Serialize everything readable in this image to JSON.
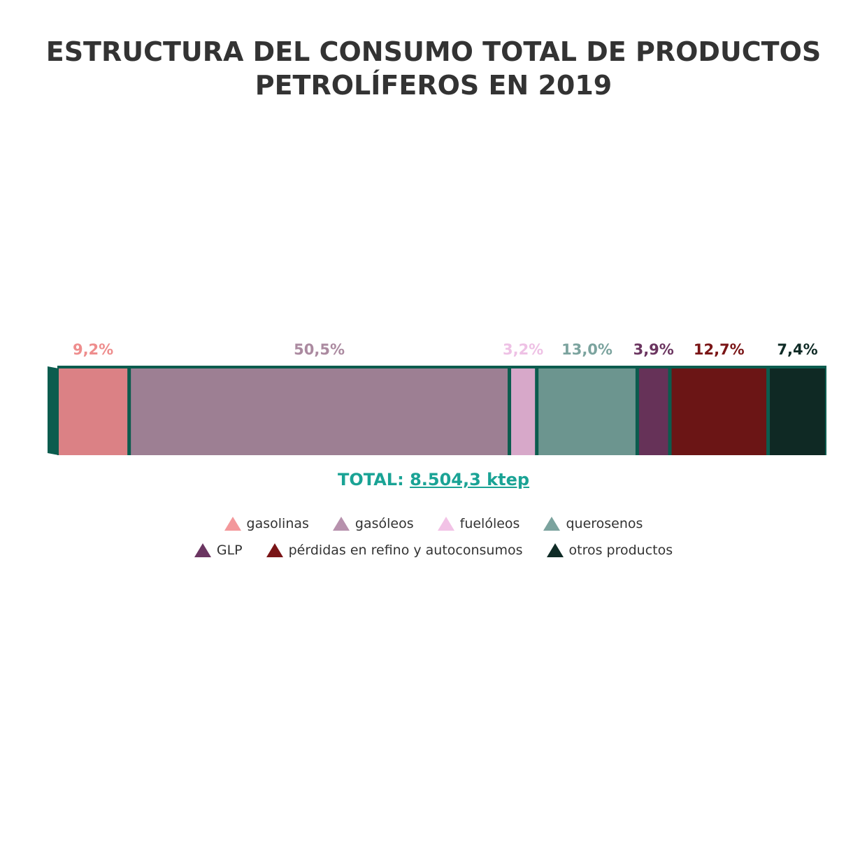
{
  "title_lines": [
    "ESTRUCTURA DEL CONSUMO TOTAL DE PRODUCTOS",
    "PETROLÍFEROS EN 2019"
  ],
  "total": {
    "label": "TOTAL: ",
    "value": "8.504,3 ktep"
  },
  "legend": [
    [
      "gasolinas",
      "gasóleos",
      "fuelóleos",
      "querosenos"
    ],
    [
      "GLP",
      "pérdidas en refino y autoconsumos",
      "otros productos"
    ]
  ],
  "chart_data": {
    "type": "bar",
    "orientation": "horizontal-stacked-100",
    "title": "ESTRUCTURA DEL CONSUMO TOTAL DE PRODUCTOS PETROLÍFEROS EN 2019",
    "unit": "%",
    "total": "8.504,3 ktep",
    "legend_position": "bottom",
    "grid": false,
    "series": [
      {
        "name": "gasolinas",
        "value": 9.2,
        "label": "9,2%",
        "fill": "#db8185",
        "label_color": "#ee8d8d",
        "legend_color": "#f3989b"
      },
      {
        "name": "gasóleos",
        "value": 50.5,
        "label": "50,5%",
        "fill": "#9d7f93",
        "label_color": "#ab8aa0",
        "legend_color": "#b791ad"
      },
      {
        "name": "fuelóleos",
        "value": 3.2,
        "label": "3,2%",
        "fill": "#d7a8c9",
        "label_color": "#eec1e5",
        "legend_color": "#f2c2e6"
      },
      {
        "name": "querosenos",
        "value": 13.0,
        "label": "13,0%",
        "fill": "#6c958f",
        "label_color": "#7ba39e",
        "legend_color": "#7ba39e"
      },
      {
        "name": "GLP",
        "value": 3.9,
        "label": "3,9%",
        "fill": "#663258",
        "label_color": "#6b3560",
        "legend_color": "#6b3561"
      },
      {
        "name": "pérdidas en refino y autoconsumos",
        "value": 12.7,
        "label": "12,7%",
        "fill": "#6b1515",
        "label_color": "#7a1516",
        "legend_color": "#7a1517"
      },
      {
        "name": "otros productos",
        "value": 7.4,
        "label": "7,4%",
        "fill": "#0f2924",
        "label_color": "#0f2b26",
        "legend_color": "#0f2b26"
      }
    ],
    "frame_color": "#0b5c4e"
  }
}
